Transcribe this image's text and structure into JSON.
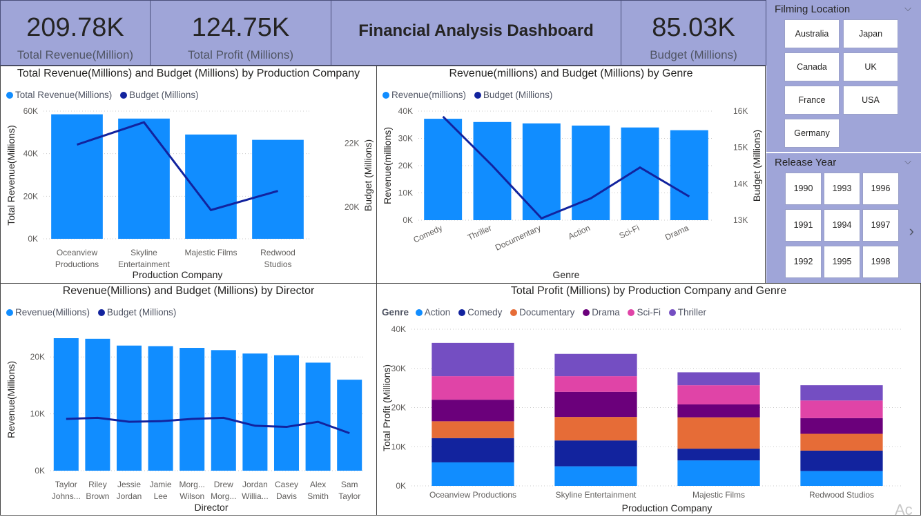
{
  "kpis": [
    {
      "value": "209.78K",
      "label": "Total Revenue(Million)"
    },
    {
      "value": "124.75K",
      "label": "Total Profit (Millions)"
    },
    {
      "value": "85.03K",
      "label": "Budget (Millions)"
    }
  ],
  "dashboard_title": "Financial Analysis Dashboard",
  "colors": {
    "primary_bar": "#118dff",
    "line": "#12239e",
    "kpi_background": "#9fa5d8",
    "action": "#118dff",
    "comedy": "#12239e",
    "documentary": "#e66c37",
    "drama": "#6b007b",
    "scifi": "#e044a7",
    "thriller": "#744ec2"
  },
  "slicers": {
    "filming_location": {
      "title": "Filming Location",
      "options": [
        "Australia",
        "Japan",
        "Canada",
        "UK",
        "France",
        "USA",
        "Germany"
      ]
    },
    "release_year": {
      "title": "Release Year",
      "options": [
        "1990",
        "1993",
        "1996",
        "1991",
        "1994",
        "1997",
        "1992",
        "1995",
        "1998"
      ]
    }
  },
  "watermark": "Ac",
  "chart_data": [
    {
      "id": "company",
      "type": "bar",
      "title": "Total Revenue(Millions) and Budget (Millions) by Production Company",
      "xlabel": "Production Company",
      "ylabel": "Total Revenue(Millions)",
      "y2label": "Budget (Millions)",
      "categories": [
        [
          "Oceanview",
          "Productions"
        ],
        [
          "Skyline",
          "Entertainment"
        ],
        [
          "Majestic Films"
        ],
        [
          "Redwood",
          "Studios"
        ]
      ],
      "series": [
        {
          "name": "Total Revenue(Millions)",
          "values": [
            58500,
            56500,
            49000,
            46500
          ]
        },
        {
          "name": "Budget (Millions)",
          "values": [
            21950,
            22650,
            19900,
            20500
          ]
        }
      ],
      "ylim": [
        0,
        60000
      ],
      "yticks": [
        "0K",
        "20K",
        "40K",
        "60K"
      ],
      "y2lim": [
        19000,
        23000
      ],
      "y2ticks": [
        {
          "v": 20000,
          "label": "20K"
        },
        {
          "v": 22000,
          "label": "22K"
        }
      ]
    },
    {
      "id": "genre",
      "type": "bar",
      "title": "Revenue(millions) and Budget (Millions) by Genre",
      "xlabel": "Genre",
      "ylabel": "Revenue(millions)",
      "y2label": "Budget (Millions)",
      "categories": [
        "Comedy",
        "Thriller",
        "Documentary",
        "Action",
        "Sci-Fi",
        "Drama"
      ],
      "series": [
        {
          "name": "Revenue(millions)",
          "values": [
            37200,
            36000,
            35500,
            34700,
            34000,
            33000
          ]
        },
        {
          "name": "Budget (Millions)",
          "values": [
            15850,
            14500,
            13050,
            13600,
            14450,
            13650
          ]
        }
      ],
      "ylim": [
        0,
        40000
      ],
      "yticks": [
        "0K",
        "10K",
        "20K",
        "30K",
        "40K"
      ],
      "y2lim": [
        13000,
        16000
      ],
      "y2ticks": [
        {
          "v": 13000,
          "label": "13K"
        },
        {
          "v": 14000,
          "label": "14K"
        },
        {
          "v": 15000,
          "label": "15K"
        },
        {
          "v": 16000,
          "label": "16K"
        }
      ]
    },
    {
      "id": "director",
      "type": "bar",
      "title": "Revenue(Millions) and Budget (Millions) by Director",
      "xlabel": "Director",
      "ylabel": "Revenue(Millions)",
      "categories": [
        [
          "Taylor",
          "Johns..."
        ],
        [
          "Riley",
          "Brown"
        ],
        [
          "Jessie",
          "Jordan"
        ],
        [
          "Jamie",
          "Lee"
        ],
        [
          "Morg...",
          "Wilson"
        ],
        [
          "Drew",
          "Morg..."
        ],
        [
          "Jordan",
          "Willia..."
        ],
        [
          "Casey",
          "Davis"
        ],
        [
          "Alex",
          "Smith"
        ],
        [
          "Sam",
          "Taylor"
        ]
      ],
      "series": [
        {
          "name": "Revenue(Millions)",
          "values": [
            23300,
            23200,
            22000,
            21900,
            21600,
            21200,
            20600,
            20300,
            19000,
            16000
          ]
        },
        {
          "name": "Budget (Millions)",
          "values": [
            9100,
            9300,
            8600,
            8700,
            9100,
            9300,
            7900,
            7700,
            8600,
            6600
          ]
        }
      ],
      "ylim": [
        0,
        25000
      ],
      "yticks": [
        {
          "v": 0,
          "label": "0K"
        },
        {
          "v": 10000,
          "label": "10K"
        },
        {
          "v": 20000,
          "label": "20K"
        }
      ]
    },
    {
      "id": "profit",
      "type": "bar",
      "stacked": true,
      "title": "Total Profit (Millions) by Production Company and Genre",
      "legend_title": "Genre",
      "xlabel": "Production Company",
      "ylabel": "Total Profit (Millions)",
      "categories": [
        "Oceanview Productions",
        "Skyline Entertainment",
        "Majestic Films",
        "Redwood Studios"
      ],
      "series": [
        {
          "name": "Action",
          "values": [
            6000,
            5000,
            6500,
            3800
          ]
        },
        {
          "name": "Comedy",
          "values": [
            6200,
            6600,
            3000,
            5200
          ]
        },
        {
          "name": "Documentary",
          "values": [
            4300,
            6000,
            8000,
            4300
          ]
        },
        {
          "name": "Drama",
          "values": [
            5500,
            6400,
            3300,
            4000
          ]
        },
        {
          "name": "Sci-Fi",
          "values": [
            6000,
            4000,
            4900,
            4500
          ]
        },
        {
          "name": "Thriller",
          "values": [
            8500,
            5700,
            3300,
            3900
          ]
        }
      ],
      "ylim": [
        0,
        40000
      ],
      "yticks": [
        "0K",
        "10K",
        "20K",
        "30K",
        "40K"
      ]
    }
  ]
}
